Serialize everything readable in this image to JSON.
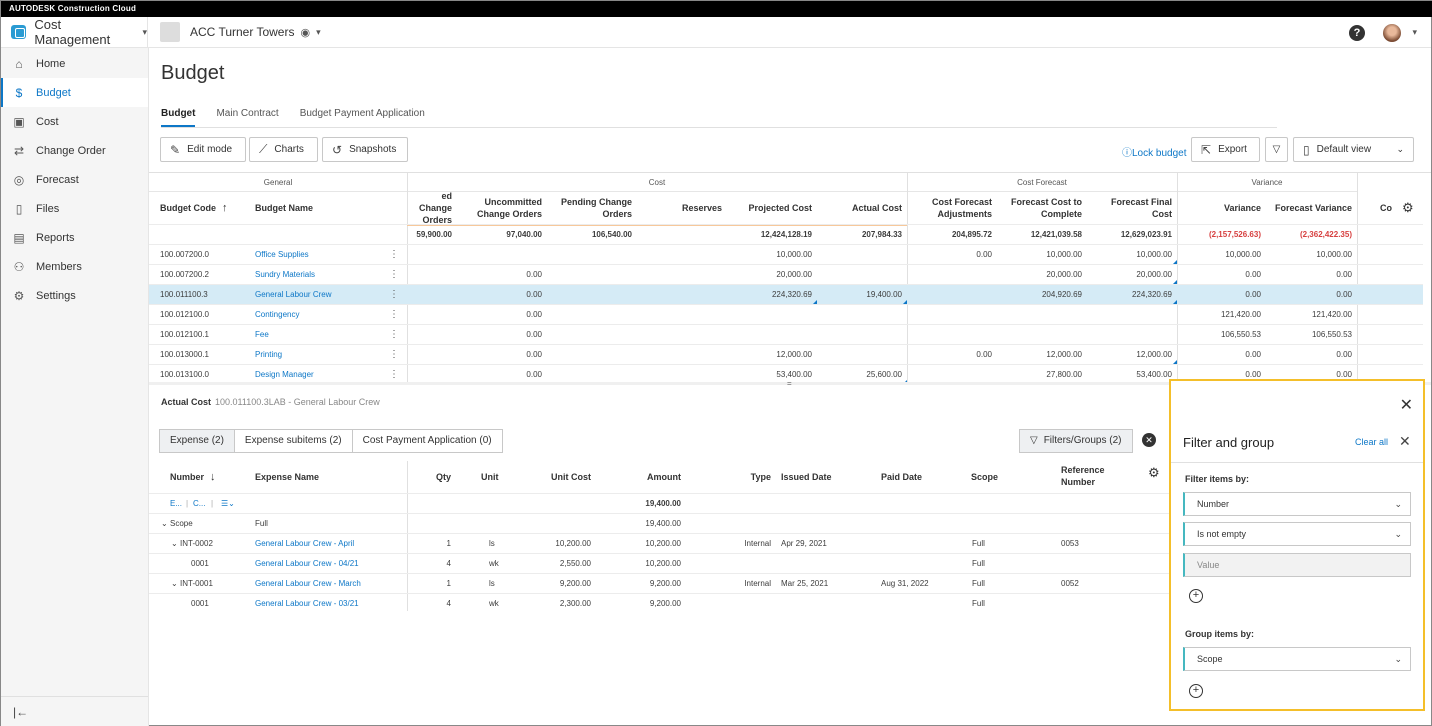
{
  "brand": "AUTODESK Construction Cloud",
  "module": "Cost Management",
  "project": "ACC Turner Towers",
  "help": "?",
  "collapse": "|←",
  "sidebar": [
    {
      "label": "Home",
      "icon": "⌂"
    },
    {
      "label": "Budget",
      "icon": "$"
    },
    {
      "label": "Cost",
      "icon": "▣"
    },
    {
      "label": "Change Order",
      "icon": "⇄"
    },
    {
      "label": "Forecast",
      "icon": "◎"
    },
    {
      "label": "Files",
      "icon": "▯"
    },
    {
      "label": "Reports",
      "icon": "▤"
    },
    {
      "label": "Members",
      "icon": "⚇"
    },
    {
      "label": "Settings",
      "icon": "⚙"
    }
  ],
  "page_title": "Budget",
  "tabs": [
    "Budget",
    "Main Contract",
    "Budget Payment Application"
  ],
  "toolbar": {
    "edit": "Edit mode",
    "charts": "Charts",
    "snapshots": "Snapshots",
    "lock": "Lock budget",
    "export": "Export",
    "view": "Default view"
  },
  "groups": {
    "general": "General",
    "cost": "Cost",
    "forecast": "Cost Forecast",
    "variance": "Variance"
  },
  "headers": {
    "code": "Budget Code",
    "name": "Budget Name",
    "approved": "ed Change Orders",
    "uncommitted": "Uncommitted Change Orders",
    "pending": "Pending Change Orders",
    "reserves": "Reserves",
    "projected": "Projected Cost",
    "actual": "Actual Cost",
    "cfa": "Cost Forecast Adjustments",
    "fctc": "Forecast Cost to Complete",
    "ffc": "Forecast Final Cost",
    "variance": "Variance",
    "fvar": "Forecast Variance",
    "co": "Co"
  },
  "totals": {
    "approved": "59,900.00",
    "uncommitted": "97,040.00",
    "pending": "106,540.00",
    "projected": "12,424,128.19",
    "actual": "207,984.33",
    "cfa": "204,895.72",
    "fctc": "12,421,039.58",
    "ffc": "12,629,023.91",
    "variance": "(2,157,526.63)",
    "fvar": "(2,362,422.35)"
  },
  "rows": [
    {
      "code": "100.007200.0",
      "name": "Office Supplies",
      "unc": "",
      "proj": "10,000.00",
      "act": "",
      "cfa": "0.00",
      "fctc": "10,000.00",
      "ffc": "10,000.00",
      "var": "10,000.00",
      "fvar": "10,000.00"
    },
    {
      "code": "100.007200.2",
      "name": "Sundry Materials",
      "unc": "0.00",
      "proj": "20,000.00",
      "act": "",
      "cfa": "",
      "fctc": "20,000.00",
      "ffc": "20,000.00",
      "var": "0.00",
      "fvar": "0.00"
    },
    {
      "code": "100.011100.3",
      "name": "General Labour Crew",
      "unc": "0.00",
      "proj": "224,320.69",
      "act": "19,400.00",
      "cfa": "",
      "fctc": "204,920.69",
      "ffc": "224,320.69",
      "var": "0.00",
      "fvar": "0.00"
    },
    {
      "code": "100.012100.0",
      "name": "Contingency",
      "unc": "0.00",
      "proj": "",
      "act": "",
      "cfa": "",
      "fctc": "",
      "ffc": "",
      "var": "121,420.00",
      "fvar": "121,420.00"
    },
    {
      "code": "100.012100.1",
      "name": "Fee",
      "unc": "0.00",
      "proj": "",
      "act": "",
      "cfa": "",
      "fctc": "",
      "ffc": "",
      "var": "106,550.53",
      "fvar": "106,550.53"
    },
    {
      "code": "100.013000.1",
      "name": "Printing",
      "unc": "0.00",
      "proj": "12,000.00",
      "act": "",
      "cfa": "0.00",
      "fctc": "12,000.00",
      "ffc": "12,000.00",
      "var": "0.00",
      "fvar": "0.00"
    },
    {
      "code": "100.013100.0",
      "name": "Design Manager",
      "unc": "0.00",
      "proj": "53,400.00",
      "act": "25,600.00",
      "cfa": "",
      "fctc": "27,800.00",
      "ffc": "53,400.00",
      "var": "0.00",
      "fvar": "0.00"
    }
  ],
  "detail": {
    "title": "Actual Cost",
    "subtitle": "100.011100.3LAB - General Labour Crew",
    "tabs": [
      "Expense (2)",
      "Expense subitems (2)",
      "Cost Payment Application (0)"
    ],
    "filter_btn": "Filters/Groups (2)",
    "headers": {
      "number": "Number",
      "name": "Expense Name",
      "qty": "Qty",
      "unit": "Unit",
      "unit_cost": "Unit Cost",
      "amount": "Amount",
      "type": "Type",
      "issued": "Issued Date",
      "paid": "Paid Date",
      "scope": "Scope",
      "ref": "Reference Number"
    },
    "filter_row": {
      "e": "E...",
      "c": "C...",
      "sort": "☰⌄",
      "amount": "19,400.00"
    },
    "rows": [
      {
        "num": "Scope",
        "name": "Full",
        "qty": "",
        "unit": "",
        "uc": "",
        "amt": "19,400.00",
        "type": "",
        "issued": "",
        "paid": "",
        "scope": "",
        "ref": "",
        "indent": 0,
        "link": false,
        "caret": true
      },
      {
        "num": "INT-0002",
        "name": "General Labour Crew - April",
        "qty": "1",
        "unit": "ls",
        "uc": "10,200.00",
        "amt": "10,200.00",
        "type": "Internal",
        "issued": "Apr 29, 2021",
        "paid": "",
        "scope": "Full",
        "ref": "0053",
        "indent": 1,
        "link": true,
        "caret": true
      },
      {
        "num": "0001",
        "name": "General Labour Crew - 04/21",
        "qty": "4",
        "unit": "wk",
        "uc": "2,550.00",
        "amt": "10,200.00",
        "type": "",
        "issued": "",
        "paid": "",
        "scope": "Full",
        "ref": "",
        "indent": 2,
        "link": true,
        "caret": false
      },
      {
        "num": "INT-0001",
        "name": "General Labour Crew - March",
        "qty": "1",
        "unit": "ls",
        "uc": "9,200.00",
        "amt": "9,200.00",
        "type": "Internal",
        "issued": "Mar 25, 2021",
        "paid": "Aug 31, 2022",
        "scope": "Full",
        "ref": "0052",
        "indent": 1,
        "link": true,
        "caret": true
      },
      {
        "num": "0001",
        "name": "General Labour Crew - 03/21",
        "qty": "4",
        "unit": "wk",
        "uc": "2,300.00",
        "amt": "9,200.00",
        "type": "",
        "issued": "",
        "paid": "",
        "scope": "Full",
        "ref": "",
        "indent": 2,
        "link": true,
        "caret": false
      }
    ]
  },
  "panel": {
    "title": "Filter and group",
    "clear_all": "Clear all",
    "filter_label": "Filter items by:",
    "field": "Number",
    "operator": "Is not empty",
    "value_placeholder": "Value",
    "group_label": "Group items by:",
    "group_field": "Scope"
  },
  "colors": {
    "accent": "#0d77c7",
    "highlight": "#f4bf2a",
    "negative": "#d74040",
    "selected_row": "#d5ebf6"
  }
}
